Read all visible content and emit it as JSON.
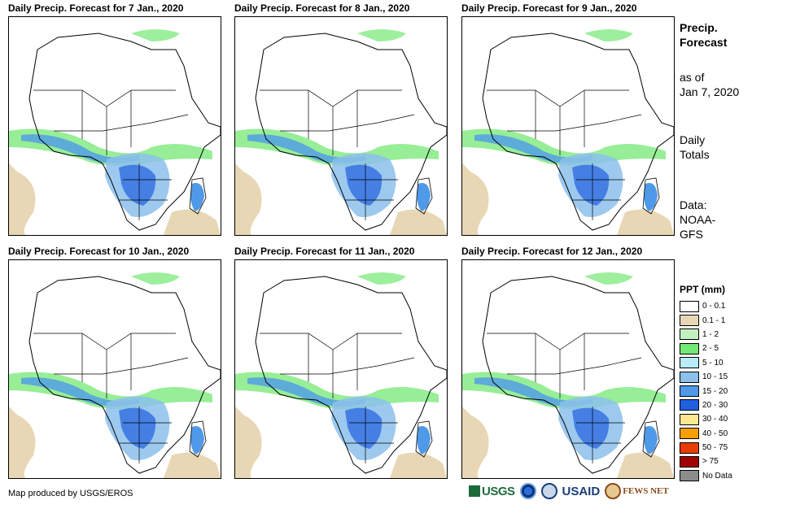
{
  "panels": [
    {
      "title": "Daily Precip. Forecast for 7 Jan., 2020"
    },
    {
      "title": "Daily Precip. Forecast for 8 Jan., 2020"
    },
    {
      "title": "Daily Precip. Forecast for 9 Jan., 2020"
    },
    {
      "title": "Daily Precip. Forecast for 10 Jan., 2020"
    },
    {
      "title": "Daily Precip. Forecast for 11 Jan., 2020"
    },
    {
      "title": "Daily Precip. Forecast for 12 Jan., 2020"
    }
  ],
  "sidebar": {
    "title_line1": "Precip.",
    "title_line2": "Forecast",
    "asof_line1": "as of",
    "asof_line2": "Jan 7, 2020",
    "totals_line1": "Daily",
    "totals_line2": "Totals",
    "data_line1": "Data:",
    "data_line2": "NOAA-",
    "data_line3": "GFS"
  },
  "legend": {
    "title": "PPT (mm)",
    "items": [
      {
        "label": "0 - 0.1",
        "color": "#ffffff"
      },
      {
        "label": "0.1 - 1",
        "color": "#e8d7b5"
      },
      {
        "label": "1 - 2",
        "color": "#c4f0c0"
      },
      {
        "label": "2 - 5",
        "color": "#74e874"
      },
      {
        "label": "5 - 10",
        "color": "#b8ecf6"
      },
      {
        "label": "10 - 15",
        "color": "#8cc0ec"
      },
      {
        "label": "15 - 20",
        "color": "#4f9ae8"
      },
      {
        "label": "20 - 30",
        "color": "#1f5fe0"
      },
      {
        "label": "30 - 40",
        "color": "#fde890"
      },
      {
        "label": "40 - 50",
        "color": "#f5a000"
      },
      {
        "label": "50 - 75",
        "color": "#ea3c00"
      },
      {
        "label": "> 75",
        "color": "#a00000"
      },
      {
        "label": "No Data",
        "color": "#8c8c8c"
      }
    ]
  },
  "footer": {
    "credit": "Map produced by USGS/EROS"
  },
  "logos": {
    "usgs": "USGS",
    "usaid": "USAID",
    "fews": "FEWS NET"
  }
}
